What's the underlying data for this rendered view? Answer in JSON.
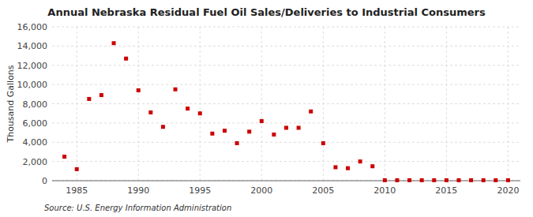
{
  "chart_data": {
    "type": "scatter",
    "title": "Annual Nebraska Residual Fuel Oil Sales/Deliveries to Industrial Consumers",
    "ylabel": "Thousand Gallons",
    "source": "Source: U.S. Energy Information Administration",
    "x": [
      1984,
      1985,
      1986,
      1987,
      1988,
      1989,
      1990,
      1991,
      1992,
      1993,
      1994,
      1995,
      1996,
      1997,
      1998,
      1999,
      2000,
      2001,
      2002,
      2003,
      2004,
      2005,
      2006,
      2007,
      2008,
      2009,
      2010,
      2011,
      2012,
      2013,
      2014,
      2015,
      2016,
      2017,
      2018,
      2019,
      2020
    ],
    "values": [
      2500,
      1200,
      8500,
      8900,
      14300,
      12700,
      9400,
      7100,
      5600,
      9500,
      7500,
      7000,
      4900,
      5200,
      3900,
      5100,
      6200,
      4800,
      5500,
      5500,
      7200,
      3900,
      1400,
      1300,
      2000,
      1500,
      50,
      50,
      50,
      50,
      50,
      50,
      50,
      50,
      50,
      50,
      50
    ],
    "color": "#cc0000",
    "marker": "square",
    "xlim": [
      1983,
      2021
    ],
    "ylim": [
      0,
      16000
    ],
    "xticks": [
      1985,
      1990,
      1995,
      2000,
      2005,
      2010,
      2015,
      2020
    ],
    "yticks": [
      0,
      {
        "value": 2000,
        "label": "2,000"
      },
      {
        "value": 4000,
        "label": "4,000"
      },
      {
        "value": 6000,
        "label": "6,000"
      },
      {
        "value": 8000,
        "label": "8,000"
      },
      {
        "value": 10000,
        "label": "10,000"
      },
      {
        "value": 12000,
        "label": "12,000"
      },
      {
        "value": 14000,
        "label": "14,000"
      },
      {
        "value": 16000,
        "label": "16,000"
      }
    ],
    "grid": true
  }
}
